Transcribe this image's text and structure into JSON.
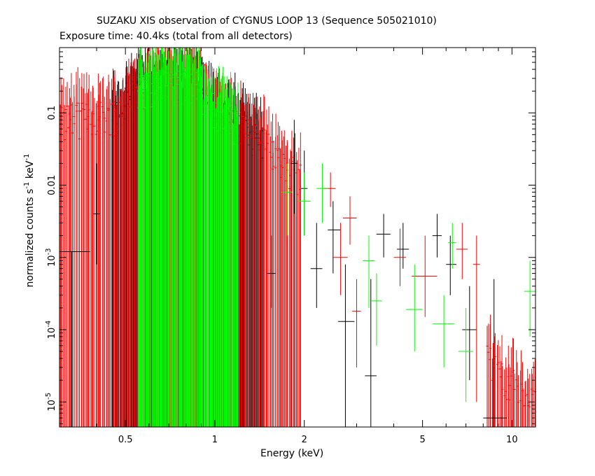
{
  "chart_data": {
    "type": "scatter",
    "title": "SUZAKU XIS observation of CYGNUS LOOP 13 (Sequence 505021010)",
    "subtitle": "Exposure time: 40.4ks (total from all detectors)",
    "xlabel": "Energy (keV)",
    "ylabel_parts": [
      "normalized counts s",
      "-1",
      " keV",
      "-1"
    ],
    "x_scale": "log",
    "y_scale": "log",
    "xlim": [
      0.3,
      12
    ],
    "ylim": [
      4.5e-06,
      0.8
    ],
    "x_ticks": [
      {
        "value": 0.5,
        "label": "0.5"
      },
      {
        "value": 1,
        "label": "1"
      },
      {
        "value": 2,
        "label": "2"
      },
      {
        "value": 5,
        "label": "5"
      },
      {
        "value": 10,
        "label": "10"
      }
    ],
    "y_ticks": [
      {
        "value": 0.1,
        "label": "0.1"
      },
      {
        "value": 0.01,
        "label": "0.01"
      },
      {
        "value": 0.001,
        "label_base": "10",
        "label_exp": "-3"
      },
      {
        "value": 0.0001,
        "label_base": "10",
        "label_exp": "-4"
      },
      {
        "value": 1e-05,
        "label_base": "10",
        "label_exp": "-5"
      }
    ],
    "grid": false,
    "series": [
      {
        "color": "#000000",
        "points": [
          {
            "x": 0.33,
            "xlo": 0.3,
            "xhi": 0.38,
            "y": 0.0012,
            "ylo": 4.5e-06,
            "yhi": 0.0012
          },
          {
            "x": 0.4,
            "xlo": 0.39,
            "xhi": 0.41,
            "y": 0.004,
            "ylo": 0.0008,
            "yhi": 0.02
          },
          {
            "x": 1.55,
            "xlo": 1.5,
            "xhi": 1.6,
            "y": 0.0006,
            "ylo": 0.0002,
            "yhi": 0.002
          },
          {
            "x": 1.85,
            "xlo": 1.8,
            "xhi": 1.9,
            "y": 0.02,
            "ylo": 0.004,
            "yhi": 0.08
          },
          {
            "x": 2.0,
            "xlo": 1.95,
            "xhi": 2.05,
            "y": 0.009,
            "ylo": 0.002,
            "yhi": 0.03
          },
          {
            "x": 2.2,
            "xlo": 2.1,
            "xhi": 2.3,
            "y": 0.0007,
            "ylo": 0.0002,
            "yhi": 0.003
          },
          {
            "x": 2.5,
            "xlo": 2.4,
            "xhi": 2.65,
            "y": 0.0024,
            "ylo": 0.0006,
            "yhi": 0.006
          },
          {
            "x": 2.75,
            "xlo": 2.6,
            "xhi": 2.95,
            "y": 0.00013,
            "ylo": 4.5e-06,
            "yhi": 0.0008
          },
          {
            "x": 3.35,
            "xlo": 3.2,
            "xhi": 3.5,
            "y": 2.3e-05,
            "ylo": 4.5e-06,
            "yhi": 0.0005
          },
          {
            "x": 3.7,
            "xlo": 3.5,
            "xhi": 3.9,
            "y": 0.0021,
            "ylo": 0.001,
            "yhi": 0.004
          },
          {
            "x": 4.3,
            "xlo": 4.1,
            "xhi": 4.5,
            "y": 0.0013,
            "ylo": 0.0007,
            "yhi": 0.003
          },
          {
            "x": 5.6,
            "xlo": 5.4,
            "xhi": 5.8,
            "y": 0.002,
            "ylo": 0.001,
            "yhi": 0.004
          },
          {
            "x": 6.2,
            "xlo": 6.0,
            "xhi": 6.5,
            "y": 0.0008,
            "ylo": 0.0003,
            "yhi": 0.002
          },
          {
            "x": 7.2,
            "xlo": 6.8,
            "xhi": 7.6,
            "y": 0.0001,
            "ylo": 2e-05,
            "yhi": 0.0004
          },
          {
            "x": 8.7,
            "xlo": 8.0,
            "xhi": 9.6,
            "y": 6e-06,
            "ylo": 4.5e-06,
            "yhi": 0.0005
          }
        ]
      },
      {
        "color": "#ff0000",
        "points": [
          {
            "x": 2.45,
            "xlo": 2.3,
            "xhi": 2.55,
            "y": 0.009,
            "ylo": 0.005,
            "yhi": 0.015
          },
          {
            "x": 2.65,
            "xlo": 2.5,
            "xhi": 2.8,
            "y": 0.001,
            "ylo": 0.0003,
            "yhi": 0.003
          },
          {
            "x": 2.85,
            "xlo": 2.7,
            "xhi": 3.0,
            "y": 0.0035,
            "ylo": 0.0015,
            "yhi": 0.007
          },
          {
            "x": 3.0,
            "xlo": 2.9,
            "xhi": 3.1,
            "y": 0.00018,
            "ylo": 3e-05,
            "yhi": 0.0005
          },
          {
            "x": 4.2,
            "xlo": 4.0,
            "xhi": 4.4,
            "y": 0.001,
            "ylo": 0.0004,
            "yhi": 0.0025
          },
          {
            "x": 5.1,
            "xlo": 4.6,
            "xhi": 5.6,
            "y": 0.00055,
            "ylo": 0.00015,
            "yhi": 0.002
          },
          {
            "x": 6.8,
            "xlo": 6.5,
            "xhi": 7.1,
            "y": 0.0013,
            "ylo": 0.0005,
            "yhi": 0.003
          },
          {
            "x": 7.6,
            "xlo": 7.4,
            "xhi": 7.8,
            "y": 0.0008,
            "ylo": 1e-05,
            "yhi": 0.002
          }
        ]
      },
      {
        "color": "#00ff00",
        "points": [
          {
            "x": 1.75,
            "xlo": 1.68,
            "xhi": 1.82,
            "y": 0.008,
            "ylo": 0.002,
            "yhi": 0.02
          },
          {
            "x": 2.0,
            "xlo": 1.9,
            "xhi": 2.1,
            "y": 0.006,
            "ylo": 0.002,
            "yhi": 0.015
          },
          {
            "x": 2.3,
            "xlo": 2.2,
            "xhi": 2.4,
            "y": 0.009,
            "ylo": 0.003,
            "yhi": 0.02
          },
          {
            "x": 3.3,
            "xlo": 3.15,
            "xhi": 3.45,
            "y": 0.0009,
            "ylo": 0.0002,
            "yhi": 0.002
          },
          {
            "x": 3.5,
            "xlo": 3.35,
            "xhi": 3.65,
            "y": 0.00025,
            "ylo": 6e-05,
            "yhi": 0.0006
          },
          {
            "x": 4.7,
            "xlo": 4.4,
            "xhi": 5.0,
            "y": 0.00019,
            "ylo": 5e-05,
            "yhi": 0.0008
          },
          {
            "x": 5.9,
            "xlo": 5.4,
            "xhi": 6.4,
            "y": 0.00012,
            "ylo": 3e-05,
            "yhi": 0.0003
          },
          {
            "x": 6.3,
            "xlo": 6.1,
            "xhi": 6.5,
            "y": 0.0016,
            "ylo": 0.0007,
            "yhi": 0.003
          },
          {
            "x": 7.0,
            "xlo": 6.6,
            "xhi": 7.4,
            "y": 5e-05,
            "ylo": 1e-05,
            "yhi": 0.0002
          },
          {
            "x": 11.5,
            "xlo": 11.0,
            "xhi": 12.0,
            "y": 0.00034,
            "ylo": 8e-05,
            "yhi": 0.0009
          }
        ]
      }
    ]
  }
}
